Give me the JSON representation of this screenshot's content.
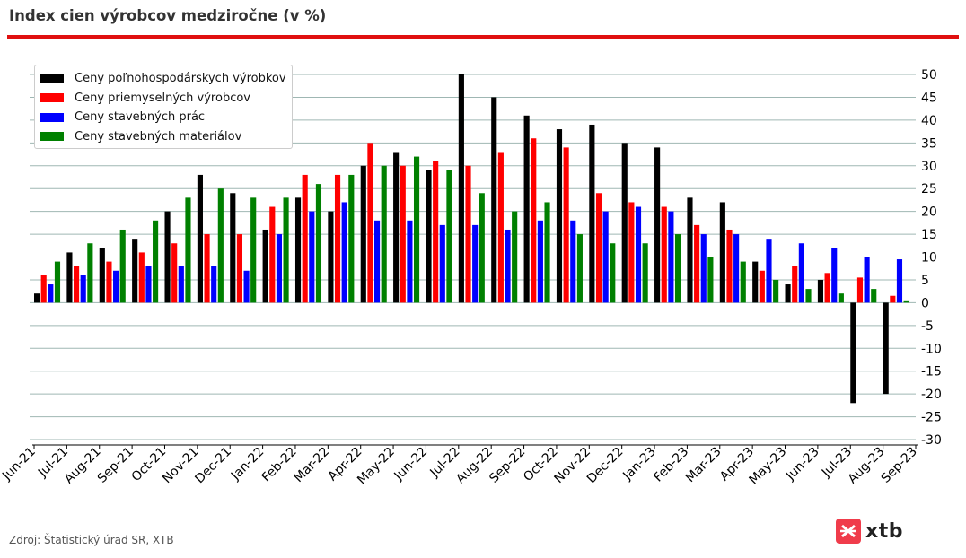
{
  "title": "Index cien výrobcov medziročne (v %)",
  "source": "Zdroj: Štatistický úrad SR, XTB",
  "logo": {
    "text": "xtb",
    "icon": "xtb-logo-icon"
  },
  "colors": {
    "accent": "#e01010",
    "grid": "#9fb7b3"
  },
  "chart_data": {
    "type": "bar",
    "title": "Index cien výrobcov medziročne (v %)",
    "xlabel": "",
    "ylabel": "",
    "categories": [
      "Jun-21",
      "Jul-21",
      "Aug-21",
      "Sep-21",
      "Oct-21",
      "Nov-21",
      "Dec-21",
      "Jan-22",
      "Feb-22",
      "Mar-22",
      "Apr-22",
      "May-22",
      "Jun-22",
      "Jul-22",
      "Aug-22",
      "Sep-22",
      "Oct-22",
      "Nov-22",
      "Dec-22",
      "Jan-23",
      "Feb-23",
      "Mar-23",
      "Apr-23",
      "May-23",
      "Jun-23",
      "Jul-23",
      "Aug-23",
      "Sep-23"
    ],
    "ylim": [
      -30,
      50
    ],
    "yticks": [
      50,
      45,
      40,
      35,
      30,
      25,
      20,
      15,
      10,
      5,
      0,
      -5,
      -10,
      -15,
      -20,
      -25,
      -30
    ],
    "y_axis_position": "right",
    "grid": true,
    "legend_position": "top-left",
    "series": [
      {
        "name": "Ceny poľnohospodárskych výrobkov",
        "color": "#000000",
        "values": [
          2,
          11,
          12,
          14,
          20,
          28,
          24,
          16,
          23,
          20,
          30,
          33,
          29,
          50,
          45,
          41,
          38,
          39,
          35,
          34,
          23,
          22,
          9,
          4,
          5,
          -22,
          -20,
          null
        ]
      },
      {
        "name": "Ceny priemyselných výrobcov",
        "color": "#ff0000",
        "values": [
          6,
          8,
          9,
          11,
          13,
          15,
          15,
          21,
          28,
          28,
          35,
          30,
          31,
          30,
          33,
          36,
          34,
          24,
          22,
          21,
          17,
          16,
          7,
          8,
          6.5,
          5.5,
          1.5,
          null
        ]
      },
      {
        "name": "Ceny stavebných prác",
        "color": "#0000ff",
        "values": [
          4,
          6,
          7,
          8,
          8,
          8,
          7,
          15,
          20,
          22,
          18,
          18,
          17,
          17,
          16,
          18,
          18,
          20,
          21,
          20,
          15,
          15,
          14,
          13,
          12,
          10,
          9.5,
          null
        ]
      },
      {
        "name": "Ceny stavebných materiálov",
        "color": "#008000",
        "values": [
          9,
          13,
          16,
          18,
          23,
          25,
          23,
          23,
          26,
          28,
          30,
          32,
          29,
          24,
          20,
          22,
          15,
          13,
          13,
          15,
          10,
          9,
          5,
          3,
          2,
          3,
          0.5,
          null
        ]
      }
    ]
  }
}
